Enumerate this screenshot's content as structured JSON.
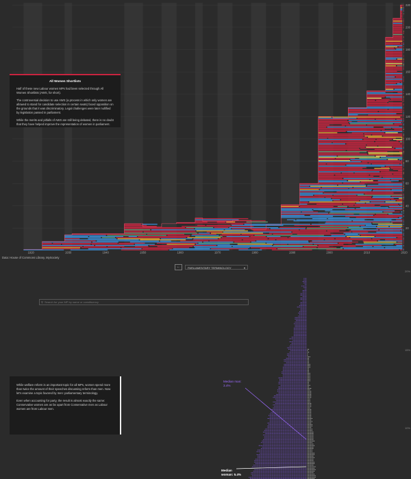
{
  "chart_data": [
    {
      "type": "bar",
      "description_type": "stacked horizontal tenure bars of women MPs by year",
      "x_ticks": [
        "1920",
        "1930",
        "1940",
        "1950",
        "1960",
        "1970",
        "1980",
        "1990",
        "2000",
        "2010",
        "2020"
      ],
      "xlim": [
        1915,
        2020
      ],
      "y_ticks": [
        "20",
        "40",
        "60",
        "80",
        "100",
        "120",
        "140",
        "160",
        "180",
        "200",
        "220"
      ],
      "ylim": [
        0,
        222
      ],
      "grid": "alternating vertical bands per parliament",
      "party_colors": {
        "labour": "#c8243f",
        "conservative": "#3b8fd9",
        "libdem": "#f2b233",
        "snp": "#f3e86b",
        "other": "#5aa37a"
      },
      "series": [
        {
          "name": "total",
          "x": [
            1918,
            1923,
            1929,
            1931,
            1945,
            1950,
            1955,
            1959,
            1964,
            1966,
            1970,
            1974,
            1979,
            1983,
            1987,
            1992,
            1997,
            2001,
            2005,
            2010,
            2015,
            2017,
            2019
          ],
          "y": [
            1,
            8,
            14,
            15,
            24,
            21,
            24,
            25,
            29,
            26,
            26,
            27,
            19,
            23,
            41,
            60,
            120,
            118,
            128,
            143,
            191,
            208,
            220
          ]
        }
      ]
    },
    {
      "type": "scatter",
      "description_type": "dot distribution of women MPs by share of speeches",
      "y_ticks": [
        "20%",
        "15%",
        "10%"
      ],
      "medians": [
        {
          "label": "Median man: 3.4%",
          "value": 3.4
        },
        {
          "label": "Median woman: 5.4%",
          "value": 5.4
        }
      ]
    }
  ],
  "annotation_top": {
    "title": "All Women Shortlists",
    "p1": "Half of these new Labour women MPs had been selected through All Women Shortlists (AWS, for short).",
    "p2": "The controversial decision to use AWS (a process in which only women are allowed to stand for candidate selection in certain seats) faced opposition on the grounds that it was discriminatory. Legal challenges were later nullified by legislation passed in parliament.",
    "p3": "While the merits and pitfalls of AWS are still being debated, there is no doubt that they have helped improve the representation of women in parliament."
  },
  "source": "Data: House of Commons Library, MySociety",
  "controls": {
    "back_label": "←",
    "select_value": "PARLIAMENTARY TERMINOLOGY",
    "chevron": "▾"
  },
  "search": {
    "icon": "⚲",
    "placeholder": "Search for your MP by name or constituency"
  },
  "annotation_bottom": {
    "p1": "While welfare reform is an important topic for all MPs, women spend more than twice the amount of their speeches discussing reform than men. Now let's examine a topic favored by men: parliamentary terminology.",
    "p2": "Even when accounting for party, the result is almost exactly the same: Conservative women are as far apart from Conservative men as Labour women are from Labour men."
  },
  "median_man": {
    "line1": "Median man:",
    "line2": "3.4%"
  },
  "median_woman": {
    "line1": "Median",
    "line2": "woman: 5.4%"
  }
}
